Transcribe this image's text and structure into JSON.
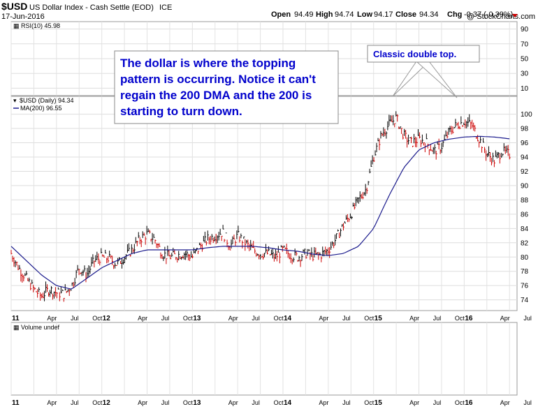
{
  "header": {
    "symbol": "$USD",
    "description": "US Dollar Index - Cash Settle (EOD)",
    "exchange": "ICE",
    "date": "17-Jun-2016",
    "watermark": "@ StockCharts.com",
    "open_label": "Open",
    "open_value": "94.49",
    "high_label": "High",
    "high_value": "94.74",
    "low_label": "Low",
    "low_value": "94.17",
    "close_label": "Close",
    "close_value": "94.34",
    "chg_label": "Chg",
    "chg_value": "-0.37 (-0.39%)",
    "chg_color": "#cc0000"
  },
  "rsi": {
    "label": "RSI(10) 45.98",
    "ticks": [
      "90",
      "70",
      "50",
      "30",
      "10"
    ],
    "tick_values": [
      90,
      70,
      50,
      30,
      10
    ],
    "range": [
      0,
      100
    ]
  },
  "price": {
    "series_label": "$USD (Daily) 94.34",
    "ma_label": "MA(200) 96.55",
    "ticks": [
      "100",
      "98",
      "96",
      "94",
      "92",
      "90",
      "88",
      "86",
      "84",
      "82",
      "80",
      "78",
      "76",
      "74"
    ],
    "tick_values": [
      100,
      98,
      96,
      94,
      92,
      90,
      88,
      86,
      84,
      82,
      80,
      78,
      76,
      74
    ],
    "range": [
      72.5,
      102.5
    ],
    "bar_color": "#000000",
    "down_color": "#cc0000",
    "ma_color": "#1a1a8c"
  },
  "volume": {
    "label": "Volume undef"
  },
  "annotations": {
    "main": "The dollar is where the topping pattern is occurring. Notice it can't regain the 200 DMA and the 200 is starting to turn down.",
    "callout": "Classic double top.",
    "main_color": "#0000cc"
  },
  "x_axis": {
    "labels": [
      "11",
      "Apr",
      "Jul",
      "Oct",
      "12",
      "Apr",
      "Jul",
      "Oct",
      "13",
      "Apr",
      "Jul",
      "Oct",
      "14",
      "Apr",
      "Jul",
      "Oct",
      "15",
      "Apr",
      "Jul",
      "Oct",
      "16",
      "Apr",
      "Jul"
    ],
    "year_labels": [
      "11",
      "12",
      "13",
      "14",
      "15",
      "16"
    ],
    "month_positions": [
      0,
      3,
      6,
      9,
      12,
      15,
      18,
      21,
      24,
      27,
      30,
      33,
      36,
      39,
      42,
      45,
      48,
      51,
      54,
      57,
      60,
      63,
      66
    ],
    "range_months": [
      0,
      67
    ]
  },
  "chart_data": {
    "type": "line",
    "title": "$USD US Dollar Index - Cash Settle (EOD)",
    "x_unit": "month index from Jan 2011",
    "series": [
      {
        "name": "$USD (Daily)",
        "x": [
          0,
          1,
          2,
          3,
          4,
          5,
          6,
          7,
          8,
          9,
          10,
          11,
          12,
          13,
          14,
          15,
          16,
          17,
          18,
          19,
          20,
          21,
          22,
          23,
          24,
          25,
          26,
          27,
          28,
          29,
          30,
          31,
          32,
          33,
          34,
          35,
          36,
          37,
          38,
          39,
          40,
          41,
          42,
          43,
          44,
          45,
          46,
          47,
          48,
          49,
          50,
          51,
          52,
          53,
          54,
          55,
          56,
          57,
          58,
          59,
          60,
          61,
          62,
          63,
          64,
          65,
          66
        ],
        "values": [
          80.5,
          78.5,
          77.0,
          75.5,
          74.5,
          75.5,
          75.0,
          74.8,
          76.0,
          78.5,
          77.5,
          79.5,
          80.0,
          79.8,
          79.0,
          80.0,
          81.0,
          82.5,
          83.2,
          82.5,
          80.5,
          80.0,
          80.3,
          80.5,
          80.0,
          81.5,
          82.5,
          83.0,
          83.5,
          81.5,
          83.0,
          82.0,
          81.0,
          80.5,
          80.5,
          80.0,
          81.0,
          80.3,
          80.0,
          80.5,
          80.2,
          80.3,
          81.0,
          82.5,
          84.5,
          86.0,
          88.0,
          89.5,
          94.0,
          97.0,
          98.5,
          99.5,
          97.0,
          96.0,
          96.5,
          96.0,
          94.8,
          95.5,
          97.5,
          98.5,
          99.0,
          98.5,
          96.5,
          94.5,
          93.5,
          94.8,
          94.34
        ]
      },
      {
        "name": "MA(200)",
        "x": [
          0,
          2,
          4,
          6,
          8,
          10,
          12,
          14,
          16,
          18,
          20,
          22,
          24,
          26,
          28,
          30,
          32,
          34,
          36,
          38,
          40,
          42,
          44,
          46,
          48,
          50,
          52,
          54,
          56,
          58,
          60,
          62,
          64,
          66
        ],
        "values": [
          81.5,
          79.5,
          77.5,
          76.0,
          75.5,
          77.0,
          78.5,
          79.5,
          80.5,
          81.0,
          81.0,
          81.0,
          81.0,
          81.3,
          81.5,
          81.5,
          81.5,
          81.3,
          81.0,
          80.8,
          80.4,
          80.2,
          80.5,
          81.5,
          84.0,
          88.5,
          92.5,
          95.0,
          96.0,
          96.5,
          96.8,
          96.9,
          96.8,
          96.55
        ]
      }
    ],
    "ylim": [
      72.5,
      102.5
    ],
    "xlabel": "",
    "ylabel": "",
    "grid": true
  }
}
